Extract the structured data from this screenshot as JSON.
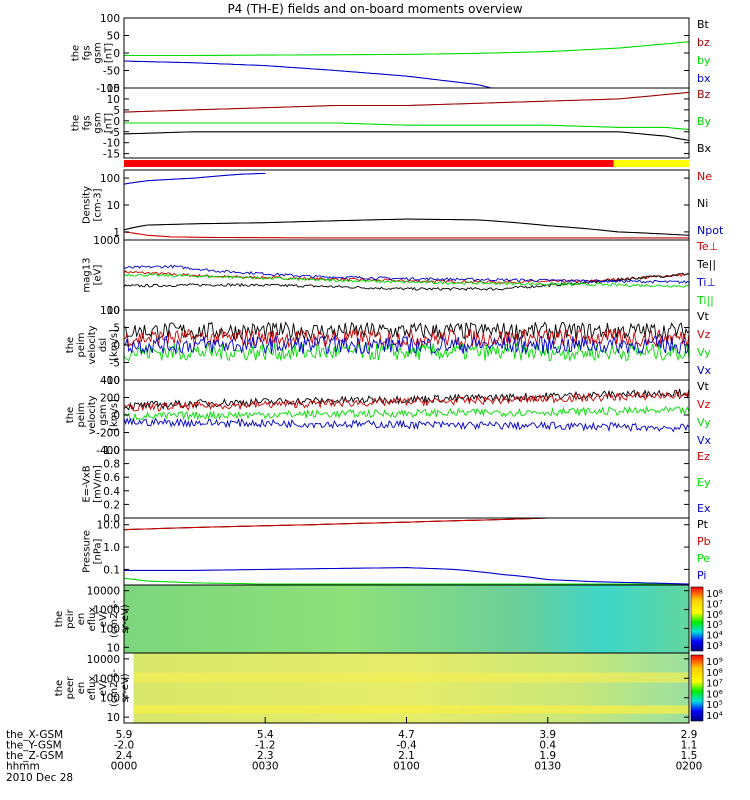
{
  "title": "P4 (TH-E) fields and on-board moments overview",
  "colors": {
    "black": "#000000",
    "red": "#cc0000",
    "green": "#00dd00",
    "blue": "#0000cc",
    "darkred": "#990000",
    "orange": "#ffcc00"
  },
  "chart_data": [
    {
      "type": "line",
      "id": "fgs_dsl",
      "ylabel": [
        "the",
        "fgs",
        "gsm",
        "[nT]"
      ],
      "ylim": [
        -100,
        100
      ],
      "yticks": [
        100,
        50,
        0,
        -50,
        -100
      ],
      "series": [
        {
          "name": "Bt",
          "color": "#000000",
          "x": [],
          "y": []
        },
        {
          "name": "bz",
          "color": "#990000",
          "x": [],
          "y": []
        },
        {
          "name": "by",
          "color": "#00dd00",
          "x": [
            0,
            15,
            30,
            45,
            60,
            75,
            90,
            105,
            120
          ],
          "y": [
            -7,
            -7,
            -6,
            -5,
            -4,
            -1,
            4,
            14,
            32
          ]
        },
        {
          "name": "bx",
          "color": "#0000cc",
          "x": [
            0,
            15,
            30,
            45,
            60,
            75,
            78
          ],
          "y": [
            -23,
            -28,
            -36,
            -50,
            -66,
            -90,
            -100
          ]
        }
      ]
    },
    {
      "type": "line",
      "id": "fgs_gsm",
      "ylabel": [
        "the",
        "fgs",
        "gsm",
        "[nT]"
      ],
      "ylim": [
        -17,
        15
      ],
      "yticks": [
        15,
        10,
        5,
        0,
        -5,
        -10,
        -15
      ],
      "series": [
        {
          "name": "Bz",
          "color": "#990000",
          "x": [
            0,
            15,
            30,
            45,
            60,
            75,
            90,
            105,
            115,
            120
          ],
          "y": [
            4,
            5,
            6,
            7,
            7,
            8,
            9,
            10,
            12,
            13
          ]
        },
        {
          "name": "By",
          "color": "#00dd00",
          "x": [
            0,
            15,
            30,
            45,
            60,
            75,
            90,
            105,
            115,
            120
          ],
          "y": [
            -1,
            -1,
            -1,
            -1,
            -2,
            -2,
            -2,
            -3,
            -3,
            -4
          ]
        },
        {
          "name": "Bx",
          "color": "#000000",
          "x": [
            0,
            15,
            30,
            45,
            60,
            75,
            90,
            105,
            115,
            120
          ],
          "y": [
            -6,
            -5,
            -5,
            -5,
            -5,
            -5,
            -5,
            -5,
            -7,
            -9
          ]
        }
      ]
    },
    {
      "type": "bar",
      "id": "mode_bar",
      "segments": [
        {
          "from": 0,
          "to": 104,
          "color": "#ff0000"
        },
        {
          "from": 104,
          "to": 120,
          "color": "#ffff00"
        }
      ]
    },
    {
      "type": "line",
      "id": "density",
      "ylabel": [
        "Density",
        "[cm-3]"
      ],
      "ylim": [
        0.5,
        200
      ],
      "log": true,
      "yticks": [
        100,
        10,
        1
      ],
      "series": [
        {
          "name": "Ne",
          "color": "#cc0000",
          "x": [
            0,
            5,
            10,
            20,
            40,
            60,
            80,
            100,
            120
          ],
          "y": [
            1.0,
            0.75,
            0.65,
            0.62,
            0.6,
            0.6,
            0.6,
            0.6,
            0.6
          ]
        },
        {
          "name": "Ni",
          "color": "#000000",
          "x": [
            0,
            5,
            15,
            30,
            45,
            60,
            75,
            90,
            105,
            120
          ],
          "y": [
            1.2,
            1.8,
            2.0,
            2.2,
            2.6,
            3.0,
            2.8,
            1.7,
            1.0,
            0.75
          ]
        },
        {
          "name": "Npot",
          "color": "#0000cc",
          "x": [
            0,
            5,
            10,
            15,
            20,
            25,
            30
          ],
          "y": [
            60,
            80,
            90,
            100,
            120,
            140,
            150
          ]
        }
      ]
    },
    {
      "type": "line",
      "id": "temps",
      "ylabel": [
        "mag13",
        "[eV]"
      ],
      "ylim": [
        100,
        1000
      ],
      "log": true,
      "yticks": [
        1000,
        100
      ],
      "series": [
        {
          "name": "Te⊥",
          "color": "#cc0000",
          "x": [
            0,
            20,
            40,
            60,
            80,
            100,
            120
          ],
          "y": [
            350,
            300,
            280,
            260,
            250,
            260,
            320
          ]
        },
        {
          "name": "Te||",
          "color": "#000000",
          "x": [
            0,
            20,
            40,
            60,
            80,
            100,
            120
          ],
          "y": [
            220,
            230,
            220,
            200,
            200,
            250,
            330
          ]
        },
        {
          "name": "Ti⊥",
          "color": "#0000cc",
          "x": [
            0,
            10,
            20,
            40,
            60,
            80,
            100,
            120
          ],
          "y": [
            400,
            420,
            360,
            300,
            280,
            270,
            260,
            250
          ]
        },
        {
          "name": "Ti||",
          "color": "#00dd00",
          "x": [
            0,
            20,
            40,
            60,
            80,
            100,
            120
          ],
          "y": [
            320,
            300,
            270,
            250,
            240,
            230,
            220
          ]
        }
      ]
    },
    {
      "type": "line",
      "id": "vel_dsl",
      "ylabel": [
        "the",
        "peim",
        "velocity",
        "dsl",
        "[km/s]"
      ],
      "ylim": [
        -10,
        10
      ],
      "yticks": [
        10,
        5,
        0,
        -5,
        -10
      ],
      "series": [
        {
          "name": "Vt",
          "color": "#000000",
          "x": [
            0,
            120
          ],
          "y": [
            4,
            4
          ]
        },
        {
          "name": "Vz",
          "color": "#cc0000",
          "x": [
            0,
            120
          ],
          "y": [
            2,
            2
          ]
        },
        {
          "name": "Vy",
          "color": "#00dd00",
          "x": [
            0,
            120
          ],
          "y": [
            -2,
            -2
          ]
        },
        {
          "name": "Vx",
          "color": "#0000cc",
          "x": [
            0,
            120
          ],
          "y": [
            0,
            0
          ]
        }
      ]
    },
    {
      "type": "line",
      "id": "vel_gsm",
      "ylabel": [
        "the",
        "peim",
        "velocity",
        "gsm",
        "[km/s]"
      ],
      "ylim": [
        -400,
        400
      ],
      "yticks": [
        400,
        200,
        0,
        -200,
        -400
      ],
      "series": [
        {
          "name": "Vt",
          "color": "#000000",
          "x": [
            0,
            20,
            40,
            60,
            80,
            100,
            120
          ],
          "y": [
            100,
            140,
            160,
            180,
            200,
            230,
            260
          ]
        },
        {
          "name": "Vz",
          "color": "#cc0000",
          "x": [
            0,
            20,
            40,
            60,
            80,
            100,
            120
          ],
          "y": [
            80,
            110,
            130,
            150,
            170,
            200,
            230
          ]
        },
        {
          "name": "Vy",
          "color": "#00dd00",
          "x": [
            0,
            20,
            40,
            60,
            80,
            100,
            120
          ],
          "y": [
            -20,
            0,
            10,
            20,
            30,
            40,
            50
          ]
        },
        {
          "name": "Vx",
          "color": "#0000cc",
          "x": [
            0,
            20,
            40,
            60,
            80,
            100,
            120
          ],
          "y": [
            -80,
            -90,
            -100,
            -110,
            -120,
            -130,
            -150
          ]
        }
      ]
    },
    {
      "type": "line",
      "id": "efield",
      "ylabel": [
        "E=-VxB",
        "[mV/m]"
      ],
      "ylim": [
        0,
        1
      ],
      "yticks": [
        1.0,
        0.8,
        0.6,
        0.4,
        0.2,
        0.0
      ],
      "series": [
        {
          "name": "Ez",
          "color": "#cc0000",
          "x": [],
          "y": []
        },
        {
          "name": "Ey",
          "color": "#00dd00",
          "x": [],
          "y": []
        },
        {
          "name": "Ex",
          "color": "#0000cc",
          "x": [],
          "y": []
        }
      ]
    },
    {
      "type": "line",
      "id": "pressure",
      "ylabel": [
        "Pressure",
        "[nPa]"
      ],
      "ylim": [
        0.02,
        20
      ],
      "log": true,
      "yticks": [
        10.0,
        1.0,
        0.1
      ],
      "ytick_labels": [
        "10.0",
        "1.0",
        "0.1"
      ],
      "series": [
        {
          "name": "Pt",
          "color": "#000000",
          "x": [
            0,
            20,
            40,
            60,
            80,
            90
          ],
          "y": [
            6,
            8,
            10,
            13,
            17,
            20
          ]
        },
        {
          "name": "Pb",
          "color": "#cc0000",
          "x": [
            0,
            20,
            40,
            60,
            80,
            90
          ],
          "y": [
            6,
            8,
            10,
            13,
            17,
            20
          ]
        },
        {
          "name": "Pe",
          "color": "#00dd00",
          "x": [
            0,
            5,
            15,
            30,
            60,
            90,
            120
          ],
          "y": [
            0.04,
            0.03,
            0.025,
            0.022,
            0.022,
            0.022,
            0.022
          ]
        },
        {
          "name": "Pi",
          "color": "#0000cc",
          "x": [
            0,
            15,
            30,
            45,
            60,
            70,
            80,
            90,
            100,
            110,
            120
          ],
          "y": [
            0.09,
            0.09,
            0.1,
            0.11,
            0.12,
            0.1,
            0.06,
            0.035,
            0.028,
            0.025,
            0.022
          ]
        }
      ]
    },
    {
      "type": "heatmap",
      "id": "peir_eflux",
      "ylabel": [
        "the",
        "peir",
        "en",
        "eflux",
        "eV/",
        "(cm2-s-",
        "sr-eV)"
      ],
      "ylim": [
        5,
        20000
      ],
      "log": true,
      "yticks": [
        10000,
        1000,
        100,
        10
      ],
      "colorbar": {
        "labels": [
          "10⁸",
          "10⁷",
          "10⁶",
          "10⁵",
          "10⁴",
          "10³"
        ]
      }
    },
    {
      "type": "heatmap",
      "id": "peer_eflux",
      "ylabel": [
        "the",
        "peer",
        "en",
        "eflux",
        "eV/",
        "(cm2-s-",
        "sr-eV)"
      ],
      "ylim": [
        5,
        20000
      ],
      "log": true,
      "yticks": [
        10000,
        1000,
        100,
        10
      ],
      "colorbar": {
        "labels": [
          "10⁹",
          "10⁸",
          "10⁷",
          "10⁶",
          "10⁵",
          "10⁴"
        ]
      }
    }
  ],
  "xaxis": {
    "ticks_min": [
      0,
      30,
      60,
      90,
      120
    ],
    "rows": [
      {
        "label": "the_X-GSM",
        "values": [
          "5.9",
          "5.4",
          "4.7",
          "3.9",
          "2.9"
        ]
      },
      {
        "label": "the_Y-GSM",
        "values": [
          "-2.0",
          "-1.2",
          "-0.4",
          "0.4",
          "1.1"
        ]
      },
      {
        "label": "the_Z-GSM",
        "values": [
          "2.4",
          "2.3",
          "2.1",
          "1.9",
          "1.5"
        ]
      },
      {
        "label": "hhmm",
        "values": [
          "0000",
          "0030",
          "0100",
          "0130",
          "0200"
        ]
      }
    ],
    "date": "2010 Dec 28"
  }
}
